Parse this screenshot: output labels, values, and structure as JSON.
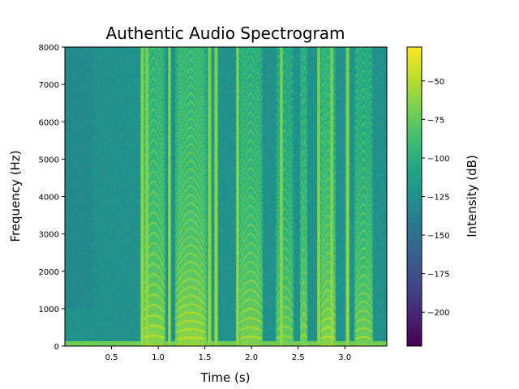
{
  "chart_data": {
    "type": "heatmap",
    "title": "Authentic Audio Spectrogram",
    "xlabel": "Time (s)",
    "ylabel": "Frequency (Hz)",
    "colorbar_label": "Intensity (dB)",
    "colormap": "viridis",
    "xlim": [
      0.0,
      3.45
    ],
    "ylim": [
      0,
      8000
    ],
    "clim": [
      -222,
      -28
    ],
    "x_ticks": [
      0.5,
      1.0,
      1.5,
      2.0,
      2.5,
      3.0
    ],
    "x_tick_labels": [
      "0.5",
      "1.0",
      "1.5",
      "2.0",
      "2.5",
      "3.0"
    ],
    "y_ticks": [
      0,
      1000,
      2000,
      3000,
      4000,
      5000,
      6000,
      7000,
      8000
    ],
    "y_tick_labels": [
      "0",
      "1000",
      "2000",
      "3000",
      "4000",
      "5000",
      "6000",
      "7000",
      "8000"
    ],
    "colorbar_ticks": [
      -50,
      -75,
      -100,
      -125,
      -150,
      -175,
      -200
    ],
    "colorbar_tick_labels": [
      "−50",
      "−75",
      "−100",
      "−125",
      "−150",
      "−175",
      "−200"
    ],
    "background_level_db": -120,
    "voiced_segments": [
      {
        "start": 0.82,
        "end": 1.08,
        "f0": 220,
        "level_db": -45
      },
      {
        "start": 1.18,
        "end": 1.52,
        "f0": 180,
        "level_db": -42
      },
      {
        "start": 1.86,
        "end": 2.12,
        "f0": 200,
        "level_db": -48
      },
      {
        "start": 2.26,
        "end": 2.45,
        "f0": 210,
        "level_db": -55
      },
      {
        "start": 2.52,
        "end": 2.6,
        "f0": 230,
        "level_db": -50
      },
      {
        "start": 2.74,
        "end": 2.9,
        "f0": 200,
        "level_db": -45
      },
      {
        "start": 3.1,
        "end": 3.3,
        "f0": 190,
        "level_db": -52
      }
    ],
    "broadband_onsets": [
      0.83,
      0.88,
      1.12,
      1.55,
      1.62,
      1.85,
      2.32,
      2.72,
      2.86,
      3.03
    ]
  }
}
